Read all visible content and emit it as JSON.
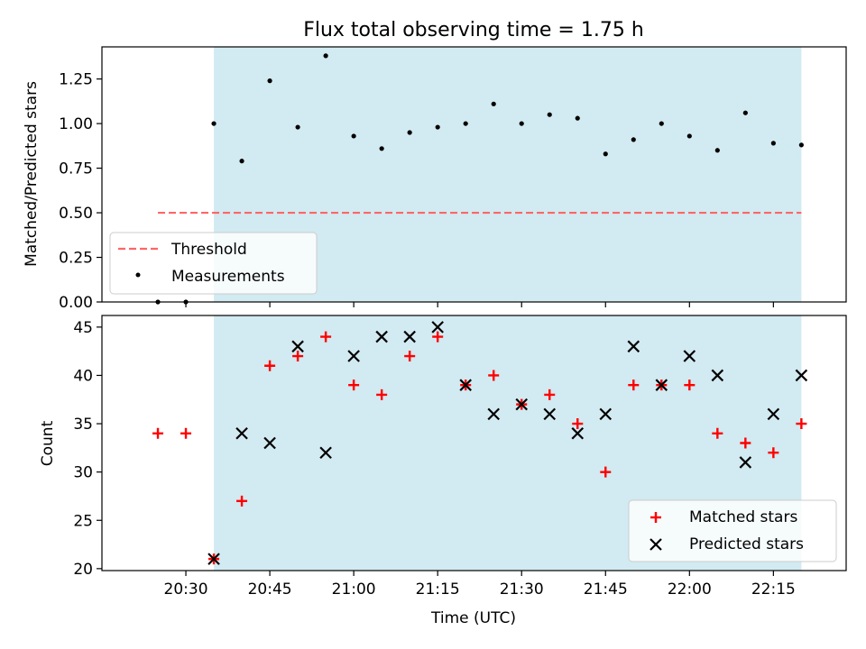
{
  "chart_data": [
    {
      "type": "scatter",
      "title": "Flux total observing time = 1.75 h",
      "xlabel": "",
      "ylabel": "Matched/Predicted stars",
      "ylim": [
        0,
        1.43
      ],
      "yticks": [
        "0.00",
        "0.25",
        "0.50",
        "0.75",
        "1.00",
        "1.25"
      ],
      "shaded_region": [
        "20:35",
        "22:20"
      ],
      "shade_color": "#add8e6",
      "threshold": {
        "name": "Threshold",
        "y": 0.5,
        "x_range": [
          "20:25",
          "22:20"
        ],
        "color": "#ff6666"
      },
      "series": [
        {
          "name": "Measurements",
          "marker": "dot",
          "color": "#000000",
          "x": [
            "20:25",
            "20:30",
            "20:35",
            "20:40",
            "20:45",
            "20:50",
            "20:55",
            "21:00",
            "21:05",
            "21:10",
            "21:15",
            "21:20",
            "21:25",
            "21:30",
            "21:35",
            "21:40",
            "21:45",
            "21:50",
            "21:55",
            "22:00",
            "22:05",
            "22:10",
            "22:15",
            "22:20"
          ],
          "y": [
            0.0,
            0.0,
            1.0,
            0.79,
            1.24,
            0.98,
            1.38,
            0.93,
            0.86,
            0.95,
            0.98,
            1.0,
            1.11,
            1.0,
            1.05,
            1.03,
            0.83,
            0.91,
            1.0,
            0.93,
            0.85,
            1.06,
            0.89,
            0.88
          ]
        }
      ],
      "legend": {
        "placement": "lower-left",
        "labels": [
          "Threshold",
          "Measurements"
        ]
      }
    },
    {
      "type": "scatter",
      "title": "",
      "xlabel": "Time (UTC)",
      "ylabel": "Count",
      "ylim": [
        19.8,
        46.2
      ],
      "yticks": [
        "20",
        "25",
        "30",
        "35",
        "40",
        "45"
      ],
      "xticks": [
        "20:30",
        "20:45",
        "21:00",
        "21:15",
        "21:30",
        "21:45",
        "22:00",
        "22:15"
      ],
      "xlim": [
        "20:15",
        "22:28"
      ],
      "shaded_region": [
        "20:35",
        "22:20"
      ],
      "shade_color": "#add8e6",
      "series": [
        {
          "name": "Matched stars",
          "marker": "plus",
          "color": "#ff0000",
          "x": [
            "20:25",
            "20:30",
            "20:35",
            "20:40",
            "20:45",
            "20:50",
            "20:55",
            "21:00",
            "21:05",
            "21:10",
            "21:15",
            "21:20",
            "21:25",
            "21:30",
            "21:35",
            "21:40",
            "21:45",
            "21:50",
            "21:55",
            "22:00",
            "22:05",
            "22:10",
            "22:15",
            "22:20"
          ],
          "y": [
            34,
            34,
            21,
            27,
            41,
            42,
            44,
            39,
            38,
            42,
            44,
            39,
            40,
            37,
            38,
            35,
            30,
            39,
            39,
            39,
            34,
            33,
            32,
            35
          ]
        },
        {
          "name": "Predicted stars",
          "marker": "x",
          "color": "#000000",
          "x": [
            "20:35",
            "20:40",
            "20:45",
            "20:50",
            "20:55",
            "21:00",
            "21:05",
            "21:10",
            "21:15",
            "21:20",
            "21:25",
            "21:30",
            "21:35",
            "21:40",
            "21:45",
            "21:50",
            "21:55",
            "22:00",
            "22:05",
            "22:10",
            "22:15",
            "22:20"
          ],
          "y": [
            21,
            34,
            33,
            43,
            32,
            42,
            44,
            44,
            45,
            39,
            36,
            37,
            36,
            34,
            36,
            43,
            39,
            42,
            40,
            31,
            36,
            40
          ]
        }
      ],
      "legend": {
        "placement": "lower-right",
        "labels": [
          "Matched stars",
          "Predicted stars"
        ]
      }
    }
  ]
}
